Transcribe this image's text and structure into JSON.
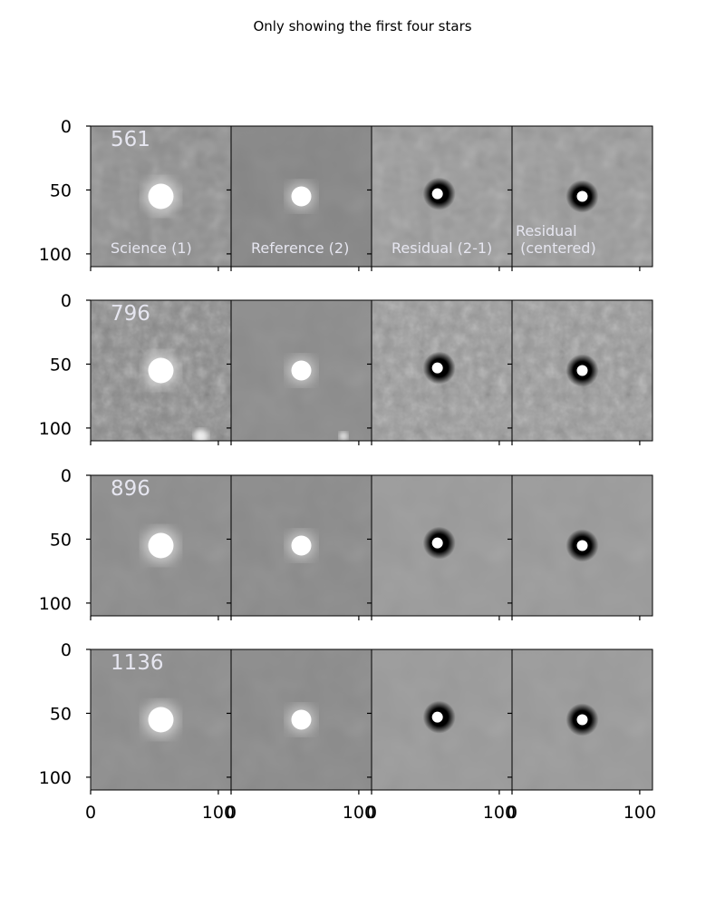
{
  "figure": {
    "suptitle": "Only showing the first four stars"
  },
  "chart_data": {
    "type": "heatmap",
    "title": "Only showing the first four stars",
    "colormap": "grayscale",
    "columns": [
      {
        "label": "Science (1)",
        "kind": "science"
      },
      {
        "label": "Reference (2)",
        "kind": "reference"
      },
      {
        "label": "Residual (2-1)",
        "kind": "residual"
      },
      {
        "label": "Residual\n (centered)",
        "kind": "residual_centered"
      }
    ],
    "rows": [
      {
        "star_id": "561",
        "noise": "medium"
      },
      {
        "star_id": "796",
        "noise": "high"
      },
      {
        "star_id": "896",
        "noise": "low"
      },
      {
        "star_id": "1136",
        "noise": "low"
      }
    ],
    "image_extent": [
      0,
      110
    ],
    "star_center": {
      "science": [
        55,
        55
      ],
      "reference": [
        55,
        55
      ],
      "residual": [
        53,
        53
      ],
      "residual_centered": [
        55,
        55
      ]
    },
    "x_ticks": [
      0,
      100
    ],
    "y_ticks": [
      0,
      50,
      100
    ],
    "x_tick_labels": [
      "0",
      "100"
    ],
    "y_tick_labels": [
      "0",
      "50",
      "100"
    ],
    "shared_axes": true
  }
}
